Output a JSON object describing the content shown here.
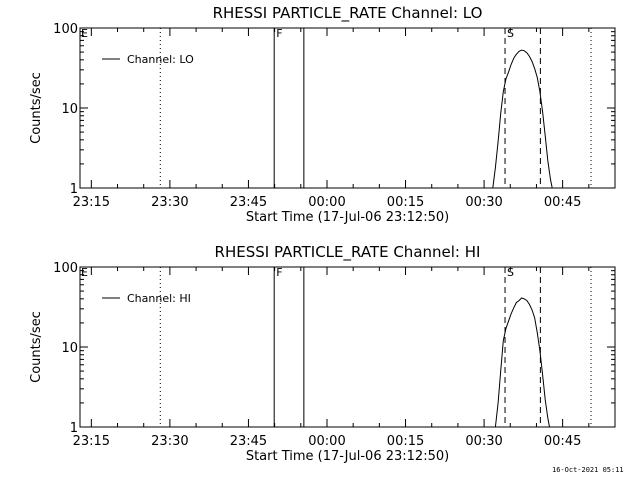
{
  "chart_data": [
    {
      "type": "line",
      "title": "RHESSI PARTICLE_RATE Channel: LO",
      "xlabel": "Start Time (17-Jul-06 23:12:50)",
      "ylabel": "Counts/sec",
      "y_scale": "log",
      "ylim": [
        1,
        100
      ],
      "xlim": [
        "23:12:50",
        "00:55:00"
      ],
      "x_ticks": [
        "23:15",
        "23:30",
        "23:45",
        "00:00",
        "00:15",
        "00:30",
        "00:45"
      ],
      "y_ticks": [
        "1",
        "10",
        "100"
      ],
      "grid": false,
      "legend": {
        "entries": [
          "Channel: LO"
        ],
        "position": "top-left"
      },
      "series": [
        {
          "name": "Channel: LO",
          "x": [
            "00:31:40",
            "00:32:10",
            "00:32:40",
            "00:33:10",
            "00:33:40",
            "00:34:10",
            "00:34:40",
            "00:35:10",
            "00:35:40",
            "00:36:10",
            "00:36:40",
            "00:37:10",
            "00:37:40",
            "00:38:10",
            "00:38:40",
            "00:39:10",
            "00:39:40",
            "00:40:10",
            "00:40:40",
            "00:41:10",
            "00:41:40",
            "00:42:10",
            "00:42:40",
            "00:43:00"
          ],
          "y": [
            1.0,
            1.8,
            3.8,
            8.5,
            16,
            23,
            28,
            35,
            42,
            47,
            51,
            53,
            52,
            49,
            44,
            38,
            31,
            24,
            16,
            9,
            4.5,
            2.2,
            1.3,
            1.0
          ]
        }
      ],
      "vertical_markers": [
        {
          "time": "23:28:10",
          "style": "dotted",
          "label": ""
        },
        {
          "time": "23:49:55",
          "style": "solid",
          "label": "F"
        },
        {
          "time": "23:55:35",
          "style": "solid",
          "label": ""
        },
        {
          "time": "00:34:00",
          "style": "dashed",
          "label": "S"
        },
        {
          "time": "00:40:45",
          "style": "dashed",
          "label": ""
        },
        {
          "time": "00:50:25",
          "style": "dotted",
          "label": ""
        }
      ],
      "corner_label": "E"
    },
    {
      "type": "line",
      "title": "RHESSI PARTICLE_RATE Channel: HI",
      "xlabel": "Start Time (17-Jul-06 23:12:50)",
      "ylabel": "Counts/sec",
      "y_scale": "log",
      "ylim": [
        1,
        100
      ],
      "xlim": [
        "23:12:50",
        "00:55:00"
      ],
      "x_ticks": [
        "23:15",
        "23:30",
        "23:45",
        "00:00",
        "00:15",
        "00:30",
        "00:45"
      ],
      "y_ticks": [
        "1",
        "10",
        "100"
      ],
      "grid": false,
      "legend": {
        "entries": [
          "Channel: HI"
        ],
        "position": "top-left"
      },
      "series": [
        {
          "name": "Channel: HI",
          "x": [
            "00:32:10",
            "00:32:40",
            "00:33:10",
            "00:33:40",
            "00:34:10",
            "00:34:40",
            "00:35:10",
            "00:35:40",
            "00:36:10",
            "00:36:40",
            "00:37:10",
            "00:37:40",
            "00:38:10",
            "00:38:40",
            "00:39:10",
            "00:39:40",
            "00:40:10",
            "00:40:40",
            "00:41:10",
            "00:41:40",
            "00:42:10",
            "00:42:30"
          ],
          "y": [
            1.0,
            2.0,
            5.0,
            12,
            17,
            21,
            26,
            31,
            36,
            38,
            41,
            40,
            38,
            34,
            29,
            23,
            15,
            9,
            4.5,
            2.2,
            1.3,
            1.0
          ]
        }
      ],
      "vertical_markers": [
        {
          "time": "23:28:10",
          "style": "dotted",
          "label": ""
        },
        {
          "time": "23:49:55",
          "style": "solid",
          "label": "F"
        },
        {
          "time": "23:55:35",
          "style": "solid",
          "label": ""
        },
        {
          "time": "00:34:00",
          "style": "dashed",
          "label": "S"
        },
        {
          "time": "00:40:45",
          "style": "dashed",
          "label": ""
        },
        {
          "time": "00:50:25",
          "style": "dotted",
          "label": ""
        }
      ],
      "corner_label": "E"
    }
  ],
  "footer": {
    "timestamp": "16-Oct-2021 05:11"
  }
}
